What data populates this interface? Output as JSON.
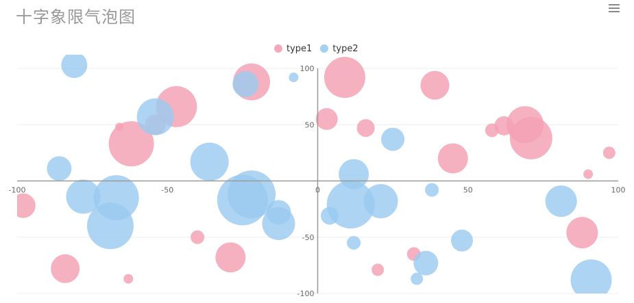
{
  "title": "十字象限气泡图",
  "menu_icon": "hamburger-menu-icon",
  "chart_data": {
    "type": "scatter",
    "title": "十字象限气泡图",
    "xlim": [
      -100,
      100
    ],
    "ylim": [
      -100,
      100
    ],
    "x_ticks": [
      -100,
      -50,
      0,
      50,
      100
    ],
    "y_ticks": [
      -100,
      -50,
      0,
      50,
      100
    ],
    "legend": {
      "position": "top-center"
    },
    "grid": true,
    "series": [
      {
        "name": "type1",
        "color": "#f4a0b3",
        "points": [
          {
            "x": -98,
            "y": -22,
            "size": 18
          },
          {
            "x": -84,
            "y": -78,
            "size": 21
          },
          {
            "x": -63,
            "y": -87,
            "size": 7
          },
          {
            "x": -40,
            "y": -50,
            "size": 10
          },
          {
            "x": -29,
            "y": -68,
            "size": 22
          },
          {
            "x": -62,
            "y": 33,
            "size": 33
          },
          {
            "x": -66,
            "y": 48,
            "size": 6
          },
          {
            "x": -54,
            "y": 50,
            "size": 15
          },
          {
            "x": -47,
            "y": 66,
            "size": 30
          },
          {
            "x": -22,
            "y": 88,
            "size": 27
          },
          {
            "x": 3,
            "y": 55,
            "size": 16
          },
          {
            "x": 9,
            "y": 92,
            "size": 30
          },
          {
            "x": 16,
            "y": 47,
            "size": 13
          },
          {
            "x": 39,
            "y": 85,
            "size": 21
          },
          {
            "x": 45,
            "y": 20,
            "size": 22
          },
          {
            "x": 58,
            "y": 45,
            "size": 10
          },
          {
            "x": 62,
            "y": 49,
            "size": 14
          },
          {
            "x": 69,
            "y": 50,
            "size": 27
          },
          {
            "x": 71,
            "y": 38,
            "size": 31
          },
          {
            "x": 90,
            "y": 6,
            "size": 7
          },
          {
            "x": 97,
            "y": 25,
            "size": 9
          },
          {
            "x": 88,
            "y": -46,
            "size": 23
          },
          {
            "x": 32,
            "y": -65,
            "size": 10
          },
          {
            "x": 20,
            "y": -79,
            "size": 9
          }
        ]
      },
      {
        "name": "type2",
        "color": "#9bcbf0",
        "points": [
          {
            "x": -81,
            "y": 103,
            "size": 19
          },
          {
            "x": -86,
            "y": 11,
            "size": 18
          },
          {
            "x": -78,
            "y": -14,
            "size": 25
          },
          {
            "x": -67,
            "y": -15,
            "size": 33
          },
          {
            "x": -69,
            "y": -40,
            "size": 34
          },
          {
            "x": -54,
            "y": 57,
            "size": 27
          },
          {
            "x": -36,
            "y": 17,
            "size": 28
          },
          {
            "x": -24,
            "y": 86,
            "size": 19
          },
          {
            "x": -8,
            "y": 92,
            "size": 7
          },
          {
            "x": -25,
            "y": -17,
            "size": 37
          },
          {
            "x": -22,
            "y": -12,
            "size": 35
          },
          {
            "x": -13,
            "y": -28,
            "size": 18
          },
          {
            "x": -13,
            "y": -38,
            "size": 24
          },
          {
            "x": 4,
            "y": -31,
            "size": 13
          },
          {
            "x": 12,
            "y": 6,
            "size": 22
          },
          {
            "x": 11,
            "y": -21,
            "size": 35
          },
          {
            "x": 21,
            "y": -18,
            "size": 25
          },
          {
            "x": 25,
            "y": 37,
            "size": 17
          },
          {
            "x": 38,
            "y": -8,
            "size": 10
          },
          {
            "x": 12,
            "y": -55,
            "size": 10
          },
          {
            "x": 36,
            "y": -73,
            "size": 18
          },
          {
            "x": 33,
            "y": -87,
            "size": 9
          },
          {
            "x": 48,
            "y": -53,
            "size": 16
          },
          {
            "x": 81,
            "y": -18,
            "size": 23
          },
          {
            "x": 91,
            "y": -88,
            "size": 30
          }
        ]
      }
    ]
  }
}
